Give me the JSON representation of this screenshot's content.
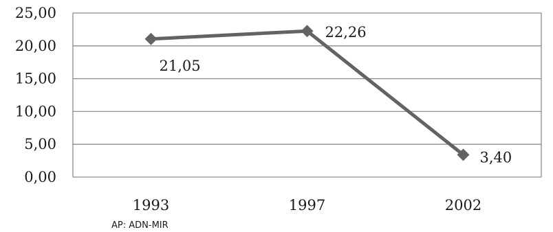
{
  "chart_data": {
    "type": "line",
    "categories": [
      "1993",
      "1997",
      "2002"
    ],
    "series": [
      {
        "values": [
          21.05,
          22.26,
          3.4
        ]
      }
    ],
    "data_labels": [
      "21,05",
      "22,26",
      "3,40"
    ],
    "y_ticks": [
      0,
      5,
      10,
      15,
      20,
      25
    ],
    "y_tick_labels": [
      "0,00",
      "5,00",
      "10,00",
      "15,00",
      "20,00",
      "25,00"
    ],
    "ylim": [
      0,
      25
    ],
    "grid": true,
    "marker": "diamond",
    "line_color": "#636363",
    "grid_color": "#8c8c8c"
  },
  "footnote": "AP: ADN-MIR"
}
